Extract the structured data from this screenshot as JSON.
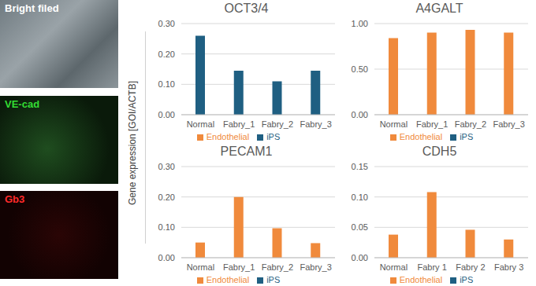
{
  "images": [
    "Bright filed",
    "VE-cad",
    "Gb3"
  ],
  "y_label": "Gene expression [GOI/ACTB]",
  "chart_data": [
    {
      "type": "bar",
      "title": "OCT3/4",
      "categories": [
        "Normal",
        "Fabry_1",
        "Fabry_2",
        "Fabry_3"
      ],
      "series": [
        {
          "name": "iPS",
          "color": "#1f5f82",
          "values": [
            0.26,
            0.145,
            0.11,
            0.145
          ]
        },
        {
          "name": "Endothelial",
          "color": "#f08a3c",
          "values": [
            null,
            null,
            null,
            null
          ]
        }
      ],
      "ylim": [
        0,
        0.3
      ],
      "yticks": [
        {
          "value": 0,
          "label": "0.00"
        },
        {
          "value": 0.1,
          "label": "0.10"
        },
        {
          "value": 0.2,
          "label": "0.20"
        },
        {
          "value": 0.3,
          "label": "0.30"
        }
      ],
      "grid": true,
      "stacked": true,
      "legend": "bottom"
    },
    {
      "type": "bar",
      "title": "A4GALT",
      "categories": [
        "Normal",
        "Fabry_1",
        "Fabry_2",
        "Fabry_3"
      ],
      "series": [
        {
          "name": "iPS",
          "color": "#1f5f82",
          "values": [
            null,
            null,
            null,
            null
          ]
        },
        {
          "name": "Endothelial",
          "color": "#f08a3c",
          "values": [
            0.84,
            0.9,
            0.93,
            0.9
          ]
        }
      ],
      "ylim": [
        0,
        1
      ],
      "yticks": [
        {
          "value": 0,
          "label": "0.00"
        },
        {
          "value": 0.5,
          "label": "0.50"
        },
        {
          "value": 1,
          "label": "1.00"
        }
      ],
      "grid": true,
      "stacked": true,
      "legend": "bottom"
    },
    {
      "type": "bar",
      "title": "PECAM1",
      "categories": [
        "Normal",
        "Fabry_1",
        "Fabry_2",
        "Fabry_3"
      ],
      "series": [
        {
          "name": "iPS",
          "color": "#1f5f82",
          "values": [
            null,
            null,
            null,
            null
          ]
        },
        {
          "name": "Endothelial",
          "color": "#f08a3c",
          "values": [
            0.05,
            0.2,
            0.097,
            0.048
          ]
        }
      ],
      "ylim": [
        0,
        0.3
      ],
      "yticks": [
        {
          "value": 0,
          "label": "0.00"
        },
        {
          "value": 0.1,
          "label": "0.10"
        },
        {
          "value": 0.2,
          "label": "0.20"
        },
        {
          "value": 0.3,
          "label": "0.30"
        }
      ],
      "grid": true,
      "stacked": true,
      "legend": "bottom"
    },
    {
      "type": "bar",
      "title": "CDH5",
      "categories": [
        "Normal",
        "Fabry 1",
        "Fabry 2",
        "Fabry 3"
      ],
      "series": [
        {
          "name": "iPS",
          "color": "#1f5f82",
          "values": [
            null,
            null,
            null,
            null
          ]
        },
        {
          "name": "Endothelial",
          "color": "#f08a3c",
          "values": [
            0.038,
            0.108,
            0.046,
            0.03
          ]
        }
      ],
      "ylim": [
        0,
        0.15
      ],
      "yticks": [
        {
          "value": 0,
          "label": "0.00"
        },
        {
          "value": 0.05,
          "label": "0.05"
        },
        {
          "value": 0.1,
          "label": "0.10"
        },
        {
          "value": 0.15,
          "label": "0.15"
        }
      ],
      "grid": true,
      "stacked": true,
      "legend": "bottom"
    }
  ]
}
